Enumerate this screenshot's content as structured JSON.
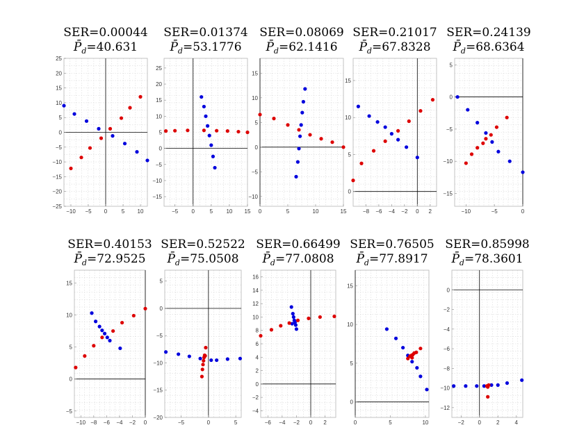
{
  "colors": {
    "blue": "#0000dd",
    "red": "#dd0000",
    "axis": "#000000"
  },
  "chart_data": [
    {
      "type": "scatter",
      "ser": "SER=0.00044",
      "pd_label": "P̄d=40.631",
      "pd": "40.631",
      "xlim": [
        -12,
        12
      ],
      "ylim": [
        -25,
        25
      ],
      "xticks": [
        -10,
        -5,
        0,
        5,
        10
      ],
      "yticks": [
        -25,
        -20,
        -15,
        -10,
        -5,
        0,
        5,
        10,
        15,
        20,
        25
      ],
      "blue": [
        [
          -12,
          9
        ],
        [
          -9,
          6.2
        ],
        [
          -5.5,
          3.8
        ],
        [
          -2,
          1.2
        ],
        [
          2,
          -1.2
        ],
        [
          5.5,
          -3.8
        ],
        [
          9,
          -6.6
        ],
        [
          12,
          -9.5
        ]
      ],
      "red": [
        [
          -10,
          -12.2
        ],
        [
          -7,
          -8.5
        ],
        [
          -4.5,
          -5.3
        ],
        [
          -1.3,
          -2
        ],
        [
          1.3,
          1.2
        ],
        [
          4.5,
          4.8
        ],
        [
          7,
          8.3
        ],
        [
          10,
          12
        ]
      ]
    },
    {
      "type": "scatter",
      "ser": "SER=0.01374",
      "pd_label": "P̄d=53.1776",
      "pd": "53.1776",
      "xlim": [
        -8,
        15
      ],
      "ylim": [
        -18,
        28
      ],
      "xticks": [
        -5,
        0,
        5,
        10,
        15
      ],
      "yticks": [
        -15,
        -10,
        -5,
        0,
        5,
        10,
        15,
        20,
        25
      ],
      "blue": [
        [
          2.3,
          16
        ],
        [
          3,
          13
        ],
        [
          3.5,
          10
        ],
        [
          4,
          7
        ],
        [
          4.5,
          4
        ],
        [
          5,
          1
        ],
        [
          5.5,
          -2.5
        ],
        [
          6,
          -6
        ]
      ],
      "red": [
        [
          -7.5,
          5.4
        ],
        [
          -5,
          5.5
        ],
        [
          -1.5,
          5.6
        ],
        [
          3,
          5.6
        ],
        [
          6.5,
          5.5
        ],
        [
          9.5,
          5.4
        ],
        [
          12.5,
          5.2
        ],
        [
          15,
          5
        ]
      ]
    },
    {
      "type": "scatter",
      "ser": "SER=0.08069",
      "pd_label": "P̄d=62.1416",
      "pd": "62.1416",
      "xlim": [
        0,
        15
      ],
      "ylim": [
        -12,
        18
      ],
      "xticks": [
        0,
        5,
        10,
        15
      ],
      "yticks": [
        -10,
        -5,
        0,
        5,
        10,
        15
      ],
      "blue": [
        [
          8.1,
          11.8
        ],
        [
          7.8,
          9.2
        ],
        [
          7.6,
          7
        ],
        [
          7.4,
          4.5
        ],
        [
          7.2,
          2.2
        ],
        [
          7,
          -0.3
        ],
        [
          6.8,
          -3
        ],
        [
          6.5,
          -6
        ]
      ],
      "red": [
        [
          0,
          6.6
        ],
        [
          2.5,
          5.8
        ],
        [
          5,
          4.5
        ],
        [
          7,
          3.5
        ],
        [
          9,
          2.5
        ],
        [
          11,
          1.7
        ],
        [
          13,
          1
        ],
        [
          15,
          0
        ]
      ]
    },
    {
      "type": "scatter",
      "ser": "SER=0.21017",
      "pd_label": "P̄d=67.8328",
      "pd": "67.8328",
      "xlim": [
        -10,
        3
      ],
      "ylim": [
        -2,
        18
      ],
      "xticks": [
        -8,
        -6,
        -4,
        -2,
        0,
        2
      ],
      "yticks": [
        0,
        5,
        10,
        15
      ],
      "blue": [
        [
          -9.2,
          11.5
        ],
        [
          -7.5,
          10.2
        ],
        [
          -6.2,
          9.4
        ],
        [
          -5,
          8.7
        ],
        [
          -4,
          7.8
        ],
        [
          -3,
          7
        ],
        [
          -1.7,
          6
        ],
        [
          0,
          4.6
        ]
      ],
      "red": [
        [
          -10,
          1.5
        ],
        [
          -8.7,
          3.8
        ],
        [
          -6.8,
          5.5
        ],
        [
          -5,
          6.8
        ],
        [
          -3,
          8.2
        ],
        [
          -1.3,
          9.5
        ],
        [
          0.5,
          10.9
        ],
        [
          2.4,
          12.4
        ]
      ]
    },
    {
      "type": "scatter",
      "ser": "SER=0.24139",
      "pd_label": "P̄d=68.6364",
      "pd": "68.6364",
      "xlim": [
        -12,
        0
      ],
      "ylim": [
        -17,
        6
      ],
      "xticks": [
        -10,
        -5,
        0
      ],
      "yticks": [
        -15,
        -10,
        -5,
        0,
        5
      ],
      "blue": [
        [
          -11.5,
          0
        ],
        [
          -9.7,
          -2
        ],
        [
          -8,
          -4
        ],
        [
          -6.5,
          -5.6
        ],
        [
          -5.4,
          -7
        ],
        [
          -4.3,
          -8.5
        ],
        [
          -2.3,
          -10
        ],
        [
          0,
          -11.7
        ]
      ],
      "red": [
        [
          -10,
          -10.3
        ],
        [
          -9,
          -8.9
        ],
        [
          -8,
          -7.9
        ],
        [
          -7,
          -7.2
        ],
        [
          -6.5,
          -6.5
        ],
        [
          -5.6,
          -5.9
        ],
        [
          -4.6,
          -4.7
        ],
        [
          -2.8,
          -3.2
        ]
      ]
    },
    {
      "type": "scatter",
      "ser": "SER=0.40153",
      "pd_label": "P̄d=72.9525",
      "pd": "72.9525",
      "xlim": [
        -11,
        0
      ],
      "ylim": [
        -6,
        17
      ],
      "xticks": [
        -10,
        -8,
        -6,
        -4,
        -2,
        0
      ],
      "yticks": [
        -5,
        0,
        5,
        10,
        15
      ],
      "blue": [
        [
          -8.3,
          10.3
        ],
        [
          -7.7,
          9
        ],
        [
          -7.1,
          8.2
        ],
        [
          -6.7,
          7.6
        ],
        [
          -6.3,
          7.1
        ],
        [
          -5.9,
          6.5
        ],
        [
          -5.5,
          6
        ],
        [
          -3.9,
          4.8
        ]
      ],
      "red": [
        [
          -10.8,
          1.8
        ],
        [
          -9.4,
          3.6
        ],
        [
          -8,
          5.2
        ],
        [
          -6.7,
          6.5
        ],
        [
          -5,
          7.5
        ],
        [
          -3.6,
          8.8
        ],
        [
          -1.8,
          9.9
        ],
        [
          0,
          11
        ]
      ]
    },
    {
      "type": "scatter",
      "ser": "SER=0.52522",
      "pd_label": "P̄d=75.0508",
      "pd": "75.0508",
      "xlim": [
        -8,
        6
      ],
      "ylim": [
        -20,
        7
      ],
      "xticks": [
        -5,
        0,
        5
      ],
      "yticks": [
        -20,
        -15,
        -10,
        -5,
        0,
        5
      ],
      "blue": [
        [
          -7.8,
          -8
        ],
        [
          -5.5,
          -8.4
        ],
        [
          -3.5,
          -8.8
        ],
        [
          -1.5,
          -9.2
        ],
        [
          0.5,
          -9.5
        ],
        [
          1.5,
          -9.5
        ],
        [
          3.5,
          -9.3
        ],
        [
          5.8,
          -9.2
        ]
      ],
      "red": [
        [
          -1.2,
          -12.5
        ],
        [
          -1.1,
          -11.2
        ],
        [
          -1,
          -10.3
        ],
        [
          -0.9,
          -9.6
        ],
        [
          -0.8,
          -9
        ],
        [
          -0.7,
          -8.6
        ],
        [
          -0.6,
          -8.7
        ],
        [
          -0.5,
          -7.2
        ]
      ]
    },
    {
      "type": "scatter",
      "ser": "SER=0.66499",
      "pd_label": "P̄d=77.0808",
      "pd": "77.0808",
      "xlim": [
        -7,
        3.5
      ],
      "ylim": [
        -5,
        17
      ],
      "xticks": [
        -6,
        -4,
        -2,
        0,
        2
      ],
      "yticks": [
        -4,
        -2,
        0,
        2,
        4,
        6,
        8,
        10,
        12,
        14,
        16
      ],
      "blue": [
        [
          -2.7,
          11.5
        ],
        [
          -2.5,
          10.5
        ],
        [
          -2.4,
          10
        ],
        [
          -2.3,
          9.5
        ],
        [
          -2.2,
          9.2
        ],
        [
          -2.1,
          8.8
        ],
        [
          -2,
          8.2
        ],
        [
          -2.6,
          9
        ]
      ],
      "red": [
        [
          -7,
          7.2
        ],
        [
          -5.5,
          8.1
        ],
        [
          -4.2,
          8.7
        ],
        [
          -3,
          9.1
        ],
        [
          -1.8,
          9.5
        ],
        [
          -0.3,
          9.8
        ],
        [
          1.3,
          10
        ],
        [
          3.3,
          10.1
        ]
      ]
    },
    {
      "type": "scatter",
      "ser": "SER=0.76505",
      "pd_label": "P̄d=77.8917",
      "pd": "77.8917",
      "xlim": [
        0,
        10.5
      ],
      "ylim": [
        -2,
        17
      ],
      "xticks": [
        0,
        5,
        10
      ],
      "yticks": [
        0,
        5,
        10,
        15
      ],
      "blue": [
        [
          4.5,
          9.4
        ],
        [
          5.8,
          8.2
        ],
        [
          6.8,
          7
        ],
        [
          7.5,
          6
        ],
        [
          8.1,
          5.2
        ],
        [
          8.8,
          4.4
        ],
        [
          9.3,
          3.3
        ],
        [
          10.2,
          1.6
        ]
      ],
      "red": [
        [
          7.5,
          5.6
        ],
        [
          7.8,
          5.9
        ],
        [
          8,
          6
        ],
        [
          8.1,
          5.7
        ],
        [
          8.2,
          6.1
        ],
        [
          8.4,
          6.3
        ],
        [
          8.7,
          6.4
        ],
        [
          9.3,
          6.9
        ]
      ]
    },
    {
      "type": "scatter",
      "ser": "SER=0.85998",
      "pd_label": "P̄d=78.3601",
      "pd": "78.3601",
      "xlim": [
        -3,
        4.7
      ],
      "ylim": [
        -13,
        2
      ],
      "xticks": [
        -2,
        0,
        2,
        4
      ],
      "yticks": [
        -12,
        -10,
        -8,
        -6,
        -4,
        -2,
        0
      ],
      "blue": [
        [
          -2.8,
          -9.8
        ],
        [
          -1.5,
          -9.8
        ],
        [
          -0.3,
          -9.8
        ],
        [
          0.5,
          -9.8
        ],
        [
          1.3,
          -9.7
        ],
        [
          2,
          -9.7
        ],
        [
          3,
          -9.5
        ],
        [
          4.6,
          -9.2
        ]
      ],
      "red": [
        [
          0.8,
          -9.8
        ],
        [
          0.9,
          -9.9
        ],
        [
          1,
          -9.7
        ],
        [
          0.9,
          -10.9
        ]
      ]
    }
  ]
}
